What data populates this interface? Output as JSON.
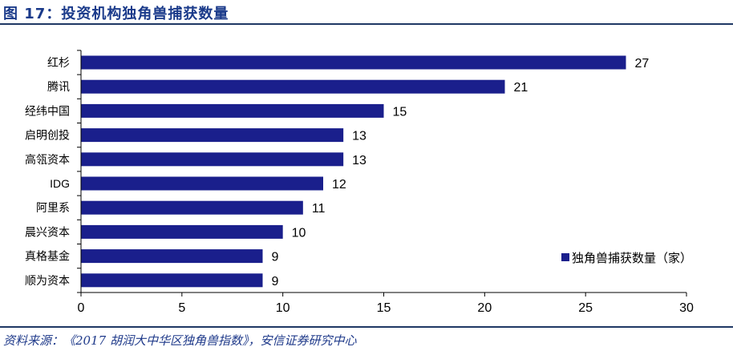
{
  "title": "图 17：投资机构独角兽捕获数量",
  "source": "资料来源：《2017 胡润大中华区独角兽指数》，安信证券研究中心",
  "chart_data": {
    "type": "bar",
    "orientation": "horizontal",
    "categories": [
      "红杉",
      "腾讯",
      "经纬中国",
      "启明创投",
      "高瓴资本",
      "IDG",
      "阿里系",
      "晨兴资本",
      "真格基金",
      "顺为资本"
    ],
    "series": [
      {
        "name": "独角兽捕获数量（家）",
        "values": [
          27,
          21,
          15,
          13,
          13,
          12,
          11,
          10,
          9,
          9
        ],
        "color": "#1a1f8c"
      }
    ],
    "xlim": [
      0,
      30
    ],
    "xticks": [
      0,
      5,
      10,
      15,
      20,
      25,
      30
    ],
    "grid": false,
    "legend": "bottom-right",
    "data_labels": true
  }
}
